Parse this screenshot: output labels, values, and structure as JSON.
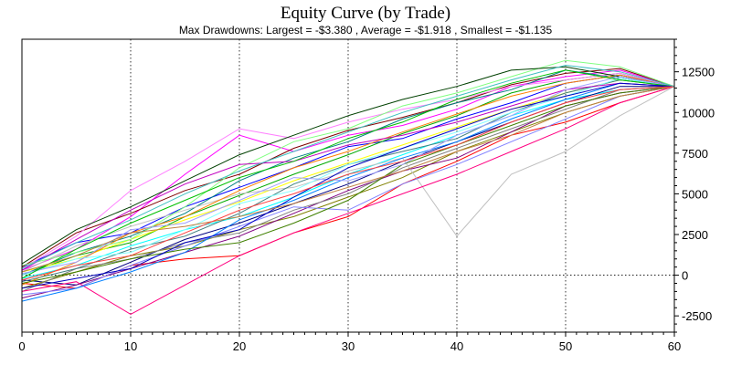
{
  "chart_data": {
    "type": "line",
    "title": "Equity Curve (by Trade)",
    "subtitle": "Max Drawdowns:  Largest = -$3.380 , Average = -$1.918 , Smallest = -$1.135",
    "xlabel": "",
    "ylabel": "",
    "xlim": [
      0,
      60
    ],
    "ylim": [
      -3500,
      14500
    ],
    "x_ticks": [
      0,
      10,
      20,
      30,
      40,
      50,
      60
    ],
    "x_tick_labels": [
      "0",
      "10",
      "20",
      "30",
      "40",
      "50",
      "60"
    ],
    "y_ticks": [
      -2500,
      0,
      2500,
      5000,
      7500,
      10000,
      12500
    ],
    "y_tick_labels": [
      "-2500",
      "0",
      "2500",
      "5000",
      "7500",
      "10000",
      "12500"
    ],
    "grid": true,
    "legend": "none",
    "x": [
      0,
      5,
      10,
      15,
      20,
      25,
      30,
      35,
      40,
      45,
      50,
      55,
      60
    ],
    "series": [
      {
        "color": "#ff0000",
        "values": [
          -500,
          -800,
          600,
          1000,
          1200,
          2600,
          3600,
          5600,
          7000,
          8600,
          9400,
          10600,
          11600
        ]
      },
      {
        "color": "#0000ff",
        "values": [
          500,
          2000,
          2600,
          4200,
          5400,
          6600,
          7900,
          8400,
          9600,
          10600,
          11800,
          12300,
          11600
        ]
      },
      {
        "color": "#ff00ff",
        "values": [
          300,
          1600,
          3600,
          6200,
          8600,
          7600,
          8600,
          9200,
          10200,
          11600,
          12200,
          12600,
          11600
        ]
      },
      {
        "color": "#00aa00",
        "values": [
          0,
          1200,
          2000,
          3600,
          4900,
          6200,
          7400,
          8700,
          9800,
          11200,
          12000,
          12400,
          11600
        ]
      },
      {
        "color": "#00ffff",
        "values": [
          -200,
          600,
          1800,
          2800,
          3600,
          4800,
          6200,
          7400,
          8600,
          9800,
          10800,
          11400,
          11600
        ]
      },
      {
        "color": "#ffff00",
        "values": [
          200,
          1000,
          2200,
          3400,
          4500,
          5800,
          6900,
          8000,
          9100,
          10200,
          11200,
          12000,
          11600
        ]
      },
      {
        "color": "#800000",
        "values": [
          500,
          2600,
          3800,
          5200,
          6200,
          7800,
          8900,
          9700,
          10600,
          11700,
          12400,
          12700,
          11600
        ]
      },
      {
        "color": "#000080",
        "values": [
          -300,
          -600,
          800,
          2200,
          3200,
          4400,
          5600,
          7000,
          8200,
          9400,
          10600,
          11600,
          11600
        ]
      },
      {
        "color": "#808000",
        "values": [
          -800,
          200,
          1200,
          1800,
          2800,
          3600,
          4800,
          6000,
          7600,
          8800,
          10000,
          11000,
          11600
        ]
      },
      {
        "color": "#800080",
        "values": [
          -1400,
          -600,
          400,
          1400,
          2400,
          3800,
          5200,
          6400,
          7200,
          8800,
          10400,
          11200,
          11600
        ]
      },
      {
        "color": "#008080",
        "values": [
          0,
          1400,
          2400,
          3800,
          5800,
          7200,
          8200,
          9600,
          10600,
          11400,
          12600,
          12100,
          11600
        ]
      },
      {
        "color": "#808080",
        "values": [
          -1000,
          400,
          1000,
          2000,
          2600,
          4000,
          5000,
          6600,
          7800,
          9000,
          10200,
          11400,
          11600
        ]
      },
      {
        "color": "#c0c0c0",
        "values": [
          200,
          1800,
          3000,
          4000,
          5000,
          5400,
          6400,
          7200,
          2400,
          6200,
          7600,
          9800,
          11600
        ]
      },
      {
        "color": "#ff8000",
        "values": [
          -600,
          800,
          2600,
          3600,
          5200,
          6600,
          7600,
          8800,
          9900,
          11000,
          11800,
          12300,
          11600
        ]
      },
      {
        "color": "#8080ff",
        "values": [
          -1200,
          -800,
          600,
          1800,
          3000,
          4200,
          4000,
          5600,
          6800,
          8200,
          9600,
          11000,
          11600
        ]
      },
      {
        "color": "#ff80ff",
        "values": [
          400,
          2400,
          5200,
          7000,
          9000,
          8400,
          9400,
          10200,
          10800,
          11600,
          12000,
          12400,
          11600
        ]
      },
      {
        "color": "#80ff80",
        "values": [
          600,
          1400,
          2200,
          4200,
          6600,
          8200,
          9000,
          10400,
          11200,
          12200,
          13200,
          12800,
          11600
        ]
      },
      {
        "color": "#408080",
        "values": [
          -400,
          400,
          1600,
          2400,
          3800,
          5600,
          6800,
          7600,
          8400,
          10000,
          11200,
          12000,
          11600
        ]
      },
      {
        "color": "#ff0080",
        "values": [
          -1000,
          -400,
          -2400,
          -600,
          1200,
          2600,
          3800,
          5000,
          6200,
          7600,
          9000,
          10600,
          11600
        ]
      },
      {
        "color": "#004000",
        "values": [
          700,
          2800,
          4200,
          5800,
          7400,
          8600,
          9800,
          10800,
          11600,
          12600,
          12800,
          12200,
          11600
        ]
      },
      {
        "color": "#0080ff",
        "values": [
          -1600,
          -800,
          200,
          1400,
          3400,
          4600,
          6000,
          7200,
          8200,
          9600,
          10800,
          11800,
          11600
        ]
      },
      {
        "color": "#80ffff",
        "values": [
          0,
          1000,
          1400,
          2800,
          4400,
          5200,
          6800,
          7800,
          8800,
          10000,
          11000,
          12100,
          11600
        ]
      },
      {
        "color": "#c000c0",
        "values": [
          300,
          2200,
          4000,
          5600,
          6800,
          7000,
          8000,
          8600,
          9400,
          10400,
          11400,
          11800,
          11600
        ]
      },
      {
        "color": "#408000",
        "values": [
          -500,
          200,
          1000,
          1600,
          2000,
          3200,
          4600,
          6800,
          8000,
          9200,
          10400,
          11200,
          11600
        ]
      },
      {
        "color": "#a0a0ff",
        "values": [
          100,
          800,
          2800,
          3200,
          4600,
          6000,
          5800,
          6800,
          8600,
          9800,
          11400,
          12200,
          11600
        ]
      },
      {
        "color": "#00c000",
        "values": [
          -200,
          1600,
          3200,
          4600,
          6000,
          7000,
          8400,
          9400,
          10800,
          11800,
          12600,
          12000,
          11600
        ]
      },
      {
        "color": "#0000c0",
        "values": [
          -800,
          -200,
          400,
          2000,
          2800,
          4800,
          6600,
          7800,
          9000,
          10200,
          11000,
          11800,
          11600
        ]
      },
      {
        "color": "#c08040",
        "values": [
          200,
          1200,
          2600,
          3000,
          3600,
          4400,
          5400,
          6400,
          7600,
          8600,
          10000,
          11000,
          11600
        ]
      },
      {
        "color": "#ff4040",
        "values": [
          -300,
          600,
          1200,
          2600,
          4000,
          5000,
          6200,
          7000,
          8000,
          9400,
          10600,
          11400,
          11600
        ]
      },
      {
        "color": "#40c0c0",
        "values": [
          400,
          2000,
          3400,
          5000,
          6400,
          7600,
          8800,
          10000,
          11000,
          12000,
          12900,
          12500,
          11600
        ]
      }
    ]
  }
}
